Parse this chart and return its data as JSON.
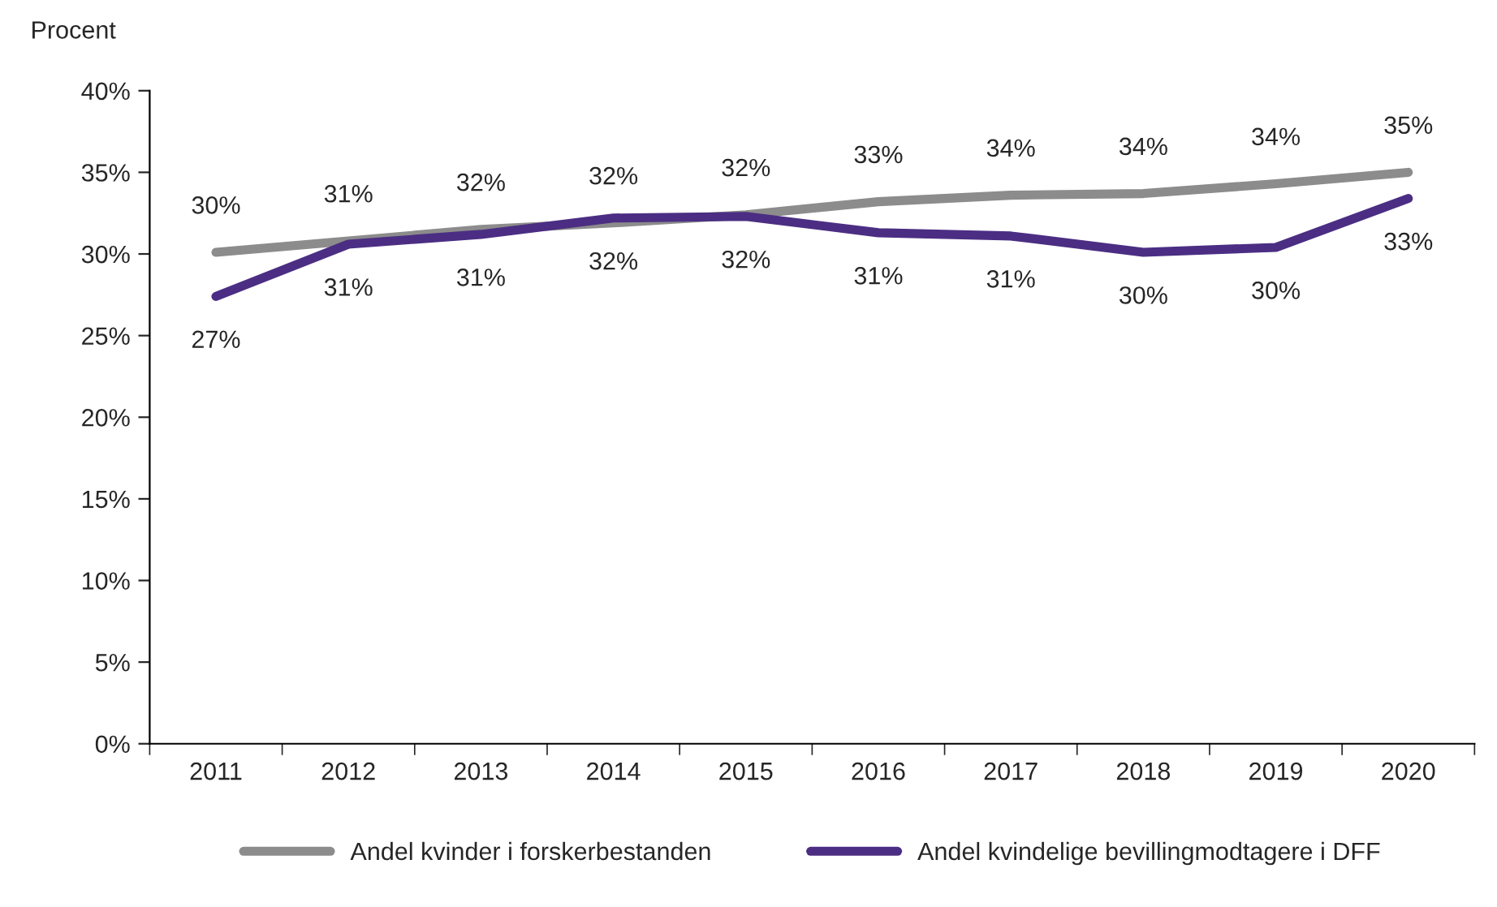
{
  "chart_data": {
    "type": "line",
    "ylabel": "Procent",
    "categories": [
      "2011",
      "2012",
      "2013",
      "2014",
      "2015",
      "2016",
      "2017",
      "2018",
      "2019",
      "2020"
    ],
    "series": [
      {
        "name": "Andel kvinder i forskerbestanden",
        "color": "#8c8c8c",
        "values": [
          30.1,
          30.8,
          31.5,
          31.9,
          32.4,
          33.2,
          33.6,
          33.7,
          34.3,
          35.0
        ],
        "value_labels": [
          "30%",
          "31%",
          "32%",
          "32%",
          "32%",
          "33%",
          "34%",
          "34%",
          "34%",
          "35%"
        ]
      },
      {
        "name": "Andel kvindelige bevillingmodtagere i DFF",
        "color": "#4b2e83",
        "values": [
          27.4,
          30.6,
          31.2,
          32.2,
          32.3,
          31.3,
          31.1,
          30.1,
          30.4,
          33.4
        ],
        "value_labels": [
          "27%",
          "31%",
          "31%",
          "32%",
          "32%",
          "31%",
          "31%",
          "30%",
          "30%",
          "33%"
        ]
      }
    ],
    "ylim": [
      0,
      40
    ],
    "yticks": [
      {
        "value": 0,
        "label": "0%"
      },
      {
        "value": 5,
        "label": "5%"
      },
      {
        "value": 10,
        "label": "10%"
      },
      {
        "value": 15,
        "label": "15%"
      },
      {
        "value": 20,
        "label": "20%"
      },
      {
        "value": 25,
        "label": "25%"
      },
      {
        "value": 30,
        "label": "30%"
      },
      {
        "value": 35,
        "label": "35%"
      },
      {
        "value": 40,
        "label": "40%"
      }
    ],
    "grid": false,
    "legend": "bottom",
    "marker": "none",
    "line_style": "solid"
  }
}
